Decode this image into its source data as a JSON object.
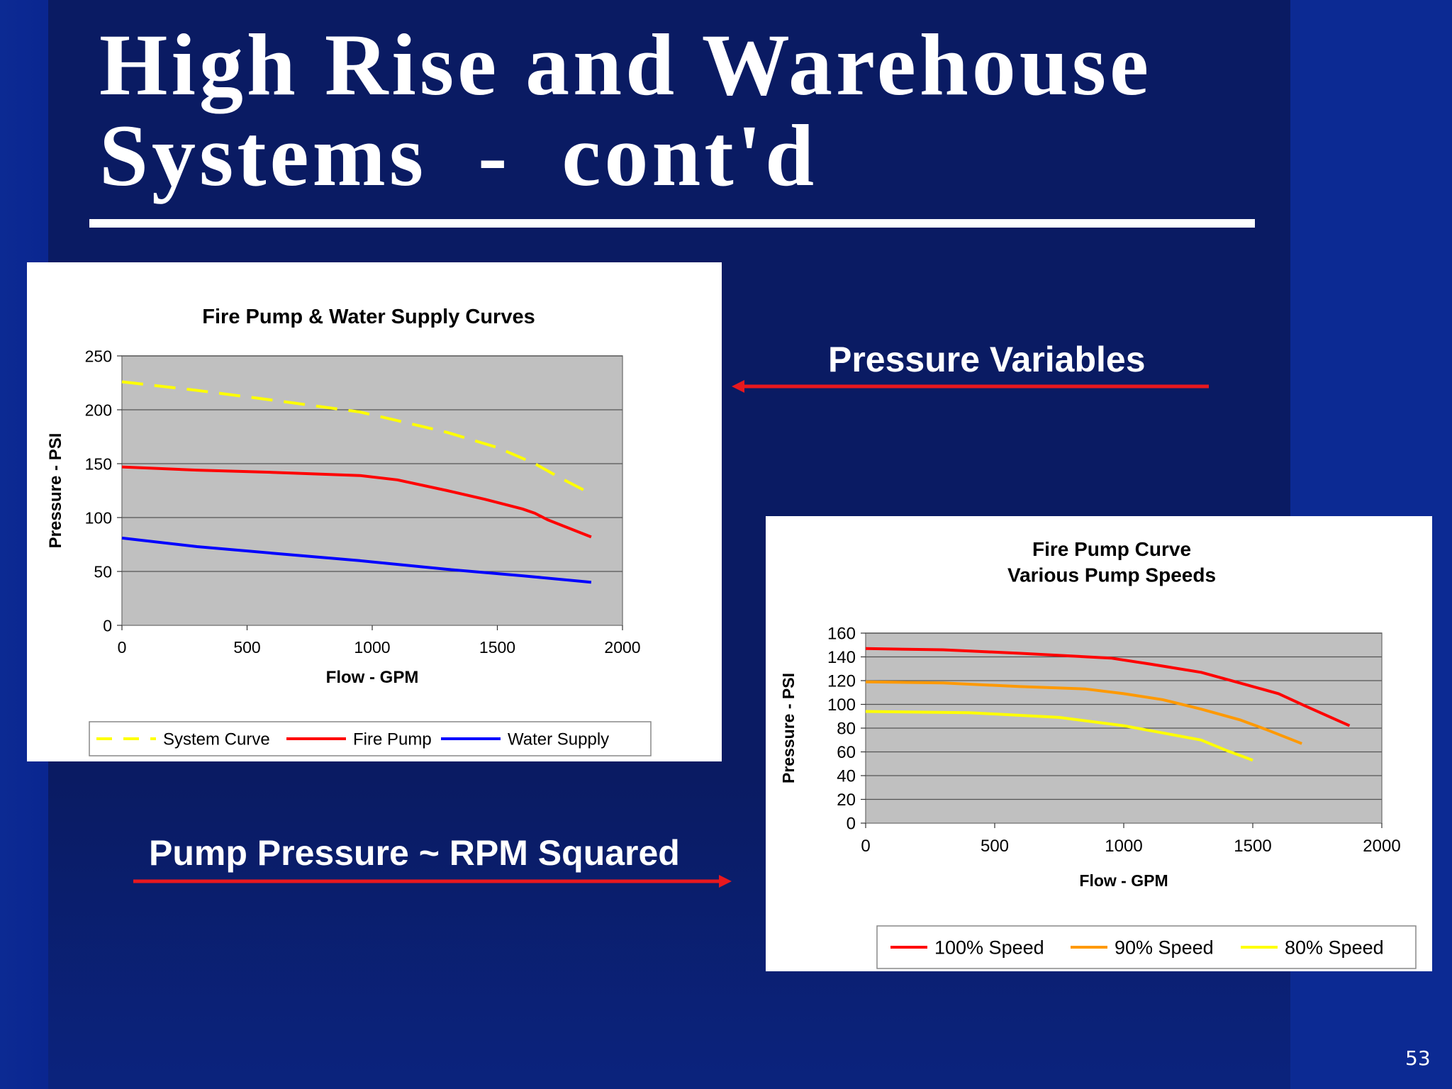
{
  "slide": {
    "title_line1": "High Rise and Warehouse",
    "title_line2": "Systems  -  cont'd",
    "callout_pressure": "Pressure Variables",
    "callout_rpm": "Pump Pressure ~ RPM Squared",
    "page_number": "53",
    "colors": {
      "background": "#0a1b63",
      "side_bands": "#0c2a93",
      "arrow": "#e8181e",
      "text": "#ffffff"
    }
  },
  "chart_data": [
    {
      "type": "line",
      "title": "Fire Pump & Water Supply Curves",
      "xlabel": "Flow - GPM",
      "ylabel": "Pressure - PSI",
      "xlim": [
        0,
        2000
      ],
      "ylim": [
        0,
        250
      ],
      "xticks": [
        "0",
        "500",
        "1000",
        "1500",
        "2000"
      ],
      "yticks": [
        "0",
        "50",
        "100",
        "150",
        "200",
        "250"
      ],
      "grid": true,
      "plot_background": "#c0c0c0",
      "legend": "bottom",
      "series": [
        {
          "name": "System Curve",
          "color": "#ffff00",
          "dashed": true,
          "x": [
            0,
            300,
            600,
            950,
            1100,
            1300,
            1500,
            1650,
            1750,
            1875
          ],
          "y": [
            226,
            218,
            209,
            198,
            190,
            179,
            165,
            150,
            137,
            122
          ]
        },
        {
          "name": "Fire Pump",
          "color": "#ff0000",
          "dashed": false,
          "x": [
            0,
            300,
            600,
            950,
            1100,
            1300,
            1450,
            1600,
            1650,
            1700,
            1875
          ],
          "y": [
            147,
            144,
            142,
            139,
            135,
            125,
            117,
            108,
            104,
            98,
            82
          ]
        },
        {
          "name": "Water Supply",
          "color": "#0000ff",
          "dashed": false,
          "x": [
            0,
            300,
            600,
            950,
            1300,
            1600,
            1875
          ],
          "y": [
            81,
            73,
            67,
            60,
            52,
            46,
            40
          ]
        }
      ]
    },
    {
      "type": "line",
      "title": "Fire Pump Curve",
      "subtitle": "Various Pump Speeds",
      "xlabel": "Flow - GPM",
      "ylabel": "Pressure - PSI",
      "xlim": [
        0,
        2000
      ],
      "ylim": [
        0,
        160
      ],
      "xticks": [
        "0",
        "500",
        "1000",
        "1500",
        "2000"
      ],
      "yticks": [
        "0",
        "20",
        "40",
        "60",
        "80",
        "100",
        "120",
        "140",
        "160"
      ],
      "grid": true,
      "plot_background": "#c0c0c0",
      "legend": "bottom",
      "series": [
        {
          "name": "100% Speed",
          "color": "#ff0000",
          "x": [
            0,
            300,
            600,
            950,
            1100,
            1300,
            1450,
            1600,
            1700,
            1875
          ],
          "y": [
            147,
            146,
            143,
            139,
            134,
            127,
            118,
            109,
            99,
            82
          ]
        },
        {
          "name": "90% Speed",
          "color": "#ff9900",
          "x": [
            0,
            300,
            600,
            850,
            1000,
            1150,
            1300,
            1450,
            1550,
            1690
          ],
          "y": [
            119,
            118,
            115,
            113,
            109,
            104,
            96,
            87,
            79,
            67
          ]
        },
        {
          "name": "80% Speed",
          "color": "#ffff00",
          "x": [
            0,
            400,
            750,
            1000,
            1150,
            1300,
            1400,
            1500
          ],
          "y": [
            94,
            93,
            89,
            82,
            76,
            70,
            61,
            53
          ]
        }
      ]
    }
  ]
}
